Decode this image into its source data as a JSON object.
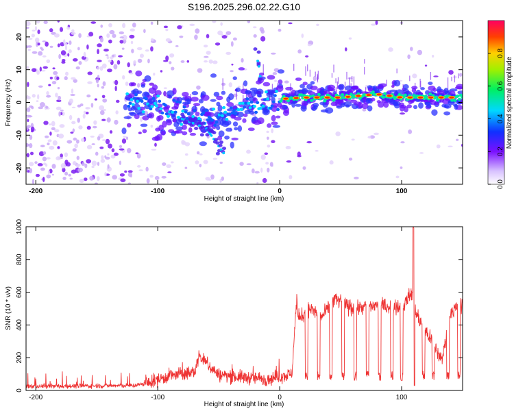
{
  "title": "S196.2025.296.02.22.G10",
  "chart_data": [
    {
      "type": "heatmap",
      "name": "spectrogram",
      "xlabel": "Height of straight line (km)",
      "ylabel": "Frequency (Hz)",
      "xlim": [
        -208,
        150
      ],
      "ylim": [
        -25,
        25
      ],
      "xticks": [
        -200,
        -100,
        0,
        100
      ],
      "yticks": [
        -20,
        -10,
        0,
        10,
        20
      ],
      "colorbar": {
        "label": "Normalized spectral amplitude",
        "range": [
          0.0,
          1.0
        ],
        "ticks": [
          0.0,
          0.2,
          0.4,
          0.6,
          0.8
        ]
      },
      "main_track": [
        {
          "x": -125,
          "y": 1.5
        },
        {
          "x": -110,
          "y": 0
        },
        {
          "x": -95,
          "y": -2
        },
        {
          "x": -80,
          "y": -3
        },
        {
          "x": -65,
          "y": -4
        },
        {
          "x": -50,
          "y": -4
        },
        {
          "x": -40,
          "y": -4
        },
        {
          "x": -30,
          "y": -1
        },
        {
          "x": -15,
          "y": 0
        },
        {
          "x": 0,
          "y": 1
        },
        {
          "x": 20,
          "y": 1.5
        },
        {
          "x": 50,
          "y": 1.5
        },
        {
          "x": 80,
          "y": 2.5
        },
        {
          "x": 100,
          "y": 1.5
        },
        {
          "x": 150,
          "y": 1.5
        }
      ],
      "secondary_branches": [
        [
          {
            "x": -80,
            "y": -5
          },
          {
            "x": -60,
            "y": -8
          },
          {
            "x": -45,
            "y": -16
          }
        ],
        [
          {
            "x": -20,
            "y": 16
          },
          {
            "x": -17,
            "y": 11
          },
          {
            "x": -15,
            "y": 5
          }
        ]
      ]
    },
    {
      "type": "line",
      "name": "snr",
      "xlabel": "Height of straight line (km)",
      "ylabel": "SNR (10 * v/v)",
      "xlim": [
        -208,
        150
      ],
      "ylim": [
        0,
        1000
      ],
      "xticks": [
        -200,
        -100,
        0,
        100
      ],
      "yticks": [
        0,
        200,
        400,
        600,
        800,
        1000
      ],
      "color": "#ee3333",
      "series": [
        {
          "name": "SNR",
          "x": [
            -208,
            -120,
            -110,
            -90,
            -70,
            -66,
            -50,
            -30,
            -10,
            10,
            14,
            15,
            25,
            35,
            45,
            60,
            80,
            100,
            109,
            110,
            111,
            115,
            125,
            133,
            140,
            150
          ],
          "values": [
            25,
            30,
            40,
            90,
            110,
            210,
            95,
            80,
            70,
            100,
            570,
            440,
            500,
            450,
            560,
            500,
            520,
            510,
            600,
            1000,
            500,
            420,
            300,
            180,
            480,
            520
          ]
        }
      ]
    }
  ]
}
